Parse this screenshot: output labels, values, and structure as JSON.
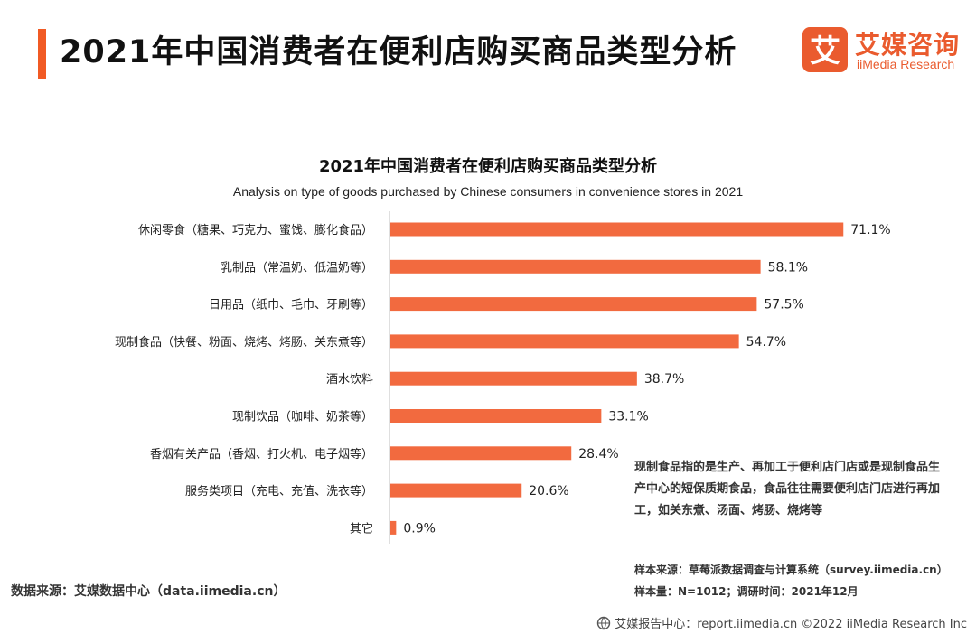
{
  "header": {
    "title": "2021年中国消费者在便利店购买商品类型分析",
    "logo_cn": "艾媒咨询",
    "logo_en": "iiMedia Research",
    "logo_mark_char": "艾"
  },
  "chart_data": {
    "type": "bar",
    "orientation": "horizontal",
    "title": "2021年中国消费者在便利店购买商品类型分析",
    "subtitle": "Analysis on type of goods purchased by Chinese consumers in convenience stores in 2021",
    "categories": [
      "休闲零食（糖果、巧克力、蜜饯、膨化食品）",
      "乳制品（常温奶、低温奶等）",
      "日用品（纸巾、毛巾、牙刷等）",
      "现制食品（快餐、粉面、烧烤、烤肠、关东煮等）",
      "酒水饮料",
      "现制饮品（咖啡、奶茶等）",
      "香烟有关产品（香烟、打火机、电子烟等）",
      "服务类项目（充电、充值、洗衣等）",
      "其它"
    ],
    "values": [
      71.1,
      58.1,
      57.5,
      54.7,
      38.7,
      33.1,
      28.4,
      20.6,
      0.9
    ],
    "value_labels": [
      "71.1%",
      "58.1%",
      "57.5%",
      "54.7%",
      "38.7%",
      "33.1%",
      "28.4%",
      "20.6%",
      "0.9%"
    ],
    "unit": "%",
    "xlim": [
      0,
      100
    ],
    "grid": false,
    "bar_color": "#f26a3f"
  },
  "note": "现制食品指的是生产、再加工于便利店门店或是现制食品生产中心的短保质期食品，食品往往需要便利店门店进行再加工，如关东煮、汤面、烤肠、烧烤等",
  "sample_source": "样本来源：草莓派数据调查与计算系统（survey.iimedia.cn）",
  "sample_size": "样本量：N=1012；调研时间：2021年12月",
  "data_source": "数据来源：艾媒数据中心（data.iimedia.cn）",
  "footer": {
    "icon": "iimedia-globe-icon",
    "text": "艾媒报告中心：report.iimedia.cn   ©2022  iiMedia Research  Inc"
  }
}
